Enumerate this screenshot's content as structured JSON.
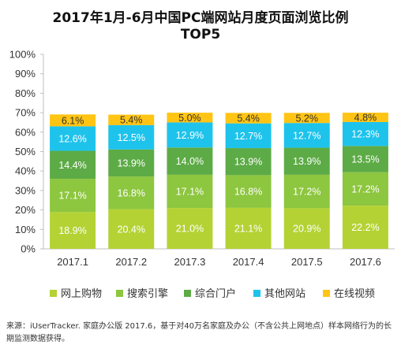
{
  "chart_data": {
    "type": "bar",
    "stacked": true,
    "title": "2017年1月-6月中国PC端网站月度页面浏览比例",
    "subtitle": "TOP5",
    "categories": [
      "2017.1",
      "2017.2",
      "2017.3",
      "2017.4",
      "2017.5",
      "2017.6"
    ],
    "ylim": [
      0,
      100
    ],
    "yticks": [
      "0%",
      "10%",
      "20%",
      "30%",
      "40%",
      "50%",
      "60%",
      "70%",
      "80%",
      "90%",
      "100%"
    ],
    "series": [
      {
        "name": "网上购物",
        "color": "#b4d233",
        "values": [
          18.9,
          20.4,
          21.0,
          21.1,
          20.9,
          22.2
        ],
        "labels": [
          "18.9%",
          "20.4%",
          "21.0%",
          "21.1%",
          "20.9%",
          "22.2%"
        ]
      },
      {
        "name": "搜索引擎",
        "color": "#8dc63f",
        "values": [
          17.1,
          16.8,
          17.1,
          16.8,
          17.2,
          17.2
        ],
        "labels": [
          "17.1%",
          "16.8%",
          "17.1%",
          "16.8%",
          "17.2%",
          "17.2%"
        ]
      },
      {
        "name": "综合门户",
        "color": "#5dab46",
        "values": [
          14.4,
          13.9,
          14.0,
          13.9,
          13.9,
          13.5
        ],
        "labels": [
          "14.4%",
          "13.9%",
          "14.0%",
          "13.9%",
          "13.9%",
          "13.5%"
        ]
      },
      {
        "name": "其他网站",
        "color": "#1ec3ec",
        "values": [
          12.6,
          12.5,
          12.9,
          12.7,
          12.7,
          12.3
        ],
        "labels": [
          "12.6%",
          "12.5%",
          "12.9%",
          "12.7%",
          "12.7%",
          "12.3%"
        ]
      },
      {
        "name": "在线视频",
        "color": "#ffc414",
        "values": [
          6.1,
          5.4,
          5.0,
          5.4,
          5.2,
          4.8
        ],
        "labels": [
          "6.1%",
          "5.4%",
          "5.0%",
          "5.4%",
          "5.2%",
          "4.8%"
        ]
      }
    ],
    "legend_position": "bottom",
    "grid": false
  },
  "source_text": "来源：iUserTracker. 家庭办公版 2017.6，基于对40万名家庭及办公（不含公共上网地点）样本网络行为的长期监测数据获得。"
}
